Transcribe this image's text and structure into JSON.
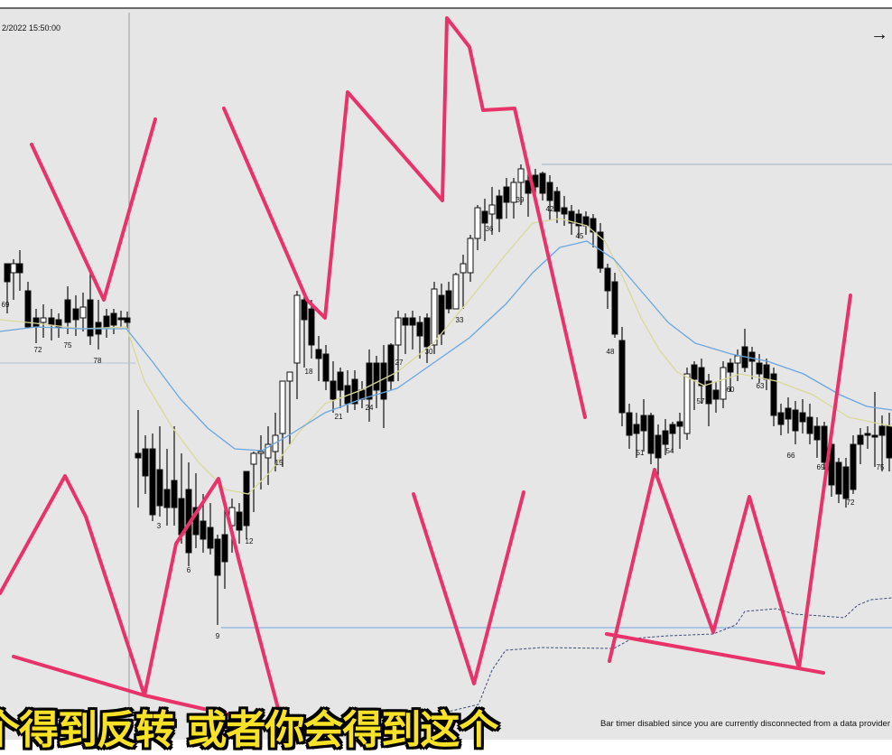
{
  "window": {
    "timestamp": "2/2022 15:50:00",
    "nav_arrow_glyph": "→",
    "nav_arrow_icon": "arrow-right-icon",
    "status_message": "Bar timer disabled since you are currently disconnected from a data provider",
    "subtitle_overlay": "个得到反转 或者你会得到这个"
  },
  "colors": {
    "background": "#e6e6e6",
    "bull_candle": "#ffffff",
    "bear_candle": "#000000",
    "ema_fast": "#d9d99a",
    "ema_slow": "#6aa6e0",
    "annotation": "#e8336a",
    "subtitle_text": "#f7e227"
  },
  "bar_labels": [
    "69",
    "72",
    "75",
    "78",
    "3",
    "6",
    "9",
    "12",
    "15",
    "18",
    "21",
    "24",
    "27",
    "30",
    "33",
    "36",
    "39",
    "42",
    "45",
    "48",
    "51",
    "54",
    "57",
    "60",
    "63",
    "66",
    "69",
    "72",
    "75"
  ],
  "chart_data": {
    "type": "candlestick",
    "ema_series": [
      "ema-fast",
      "ema-slow"
    ],
    "annotations": "hand-drawn pink lines"
  }
}
